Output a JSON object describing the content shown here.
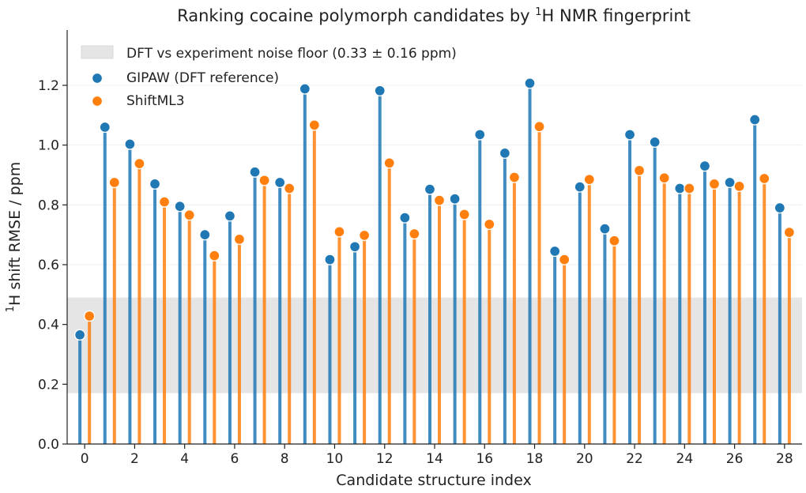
{
  "chart_data": {
    "type": "scatter",
    "title": "Ranking cocaine polymorph candidates by ¹H NMR fingerprint",
    "title_main": "Ranking cocaine polymorph candidates by ",
    "title_sup": "1",
    "title_tail": "H NMR fingerprint",
    "xlabel": "Candidate structure index",
    "ylabel_sup": "1",
    "ylabel_main": "H shift RMSE / ppm",
    "xlim": [
      -0.7,
      28.7
    ],
    "ylim": [
      0,
      1.385
    ],
    "x_ticks": [
      "0",
      "2",
      "4",
      "6",
      "8",
      "10",
      "12",
      "14",
      "16",
      "18",
      "20",
      "22",
      "24",
      "26",
      "28"
    ],
    "y_ticks": [
      "0.0",
      "0.2",
      "0.4",
      "0.6",
      "0.8",
      "1.0",
      "1.2"
    ],
    "grid": "horizontal",
    "legend_position": "top-left",
    "noise_floor": {
      "label": "DFT vs experiment noise floor (0.33 ± 0.16 ppm)",
      "center": 0.33,
      "halfwidth": 0.16,
      "color": "#e5e5e5"
    },
    "x": [
      0,
      1,
      2,
      3,
      4,
      5,
      6,
      7,
      8,
      9,
      10,
      11,
      12,
      13,
      14,
      15,
      16,
      17,
      18,
      19,
      20,
      21,
      22,
      23,
      24,
      25,
      26,
      27,
      28
    ],
    "series": [
      {
        "name": "GIPAW (DFT reference)",
        "color": "#1f77b4",
        "values": [
          0.365,
          1.06,
          1.003,
          0.87,
          0.795,
          0.7,
          0.763,
          0.91,
          0.875,
          1.188,
          0.617,
          0.66,
          1.182,
          0.757,
          0.852,
          0.82,
          1.035,
          0.973,
          1.207,
          0.645,
          0.86,
          0.72,
          1.035,
          1.01,
          0.855,
          0.93,
          0.875,
          1.085,
          0.79
        ]
      },
      {
        "name": "ShiftML3",
        "color": "#ff7f0e",
        "values": [
          0.428,
          0.875,
          0.938,
          0.81,
          0.766,
          0.63,
          0.685,
          0.882,
          0.855,
          1.067,
          0.71,
          0.698,
          0.94,
          0.703,
          0.815,
          0.768,
          0.735,
          0.892,
          1.062,
          0.617,
          0.885,
          0.68,
          0.915,
          0.89,
          0.855,
          0.87,
          0.862,
          0.888,
          0.708
        ]
      }
    ]
  }
}
